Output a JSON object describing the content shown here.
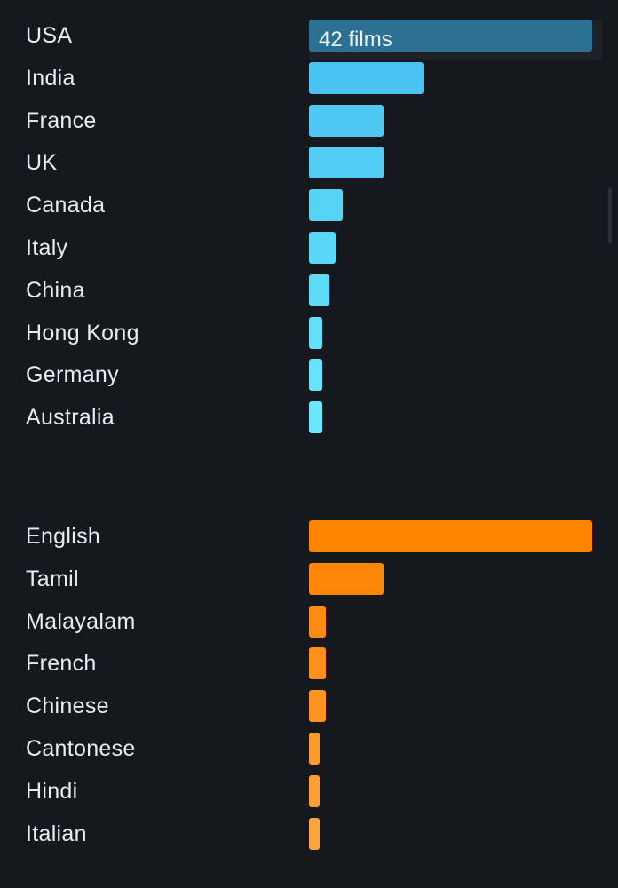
{
  "countries": {
    "max_films": 42,
    "highlight_label": "42 films",
    "highlight_color": "#2a7194",
    "items": [
      {
        "label": "USA",
        "films": 42,
        "color": "#2a7194",
        "highlighted": true
      },
      {
        "label": "India",
        "films": 17,
        "color": "#4ac2f2"
      },
      {
        "label": "France",
        "films": 11,
        "color": "#4fc8f3"
      },
      {
        "label": "UK",
        "films": 11,
        "color": "#52ccf4"
      },
      {
        "label": "Canada",
        "films": 5,
        "color": "#57d3f6"
      },
      {
        "label": "Italy",
        "films": 4,
        "color": "#5bd7f7"
      },
      {
        "label": "China",
        "films": 3,
        "color": "#5fdbf8"
      },
      {
        "label": "Hong Kong",
        "films": 2,
        "color": "#63dff9"
      },
      {
        "label": "Germany",
        "films": 2,
        "color": "#67e3fa"
      },
      {
        "label": "Australia",
        "films": 2,
        "color": "#6ae6fb"
      }
    ]
  },
  "languages": {
    "max_films": 42,
    "items": [
      {
        "label": "English",
        "films": 42,
        "color": "#ff8500"
      },
      {
        "label": "Tamil",
        "films": 11,
        "color": "#ff8707"
      },
      {
        "label": "Malayalam",
        "films": 2.5,
        "color": "#ff8c12"
      },
      {
        "label": "French",
        "films": 2.5,
        "color": "#ff9019"
      },
      {
        "label": "Chinese",
        "films": 2.5,
        "color": "#ff951f"
      },
      {
        "label": "Cantonese",
        "films": 1.6,
        "color": "#ff9a29"
      },
      {
        "label": "Hindi",
        "films": 1.6,
        "color": "#ff9f31"
      },
      {
        "label": "Italian",
        "films": 1.6,
        "color": "#ffa43b"
      }
    ]
  }
}
